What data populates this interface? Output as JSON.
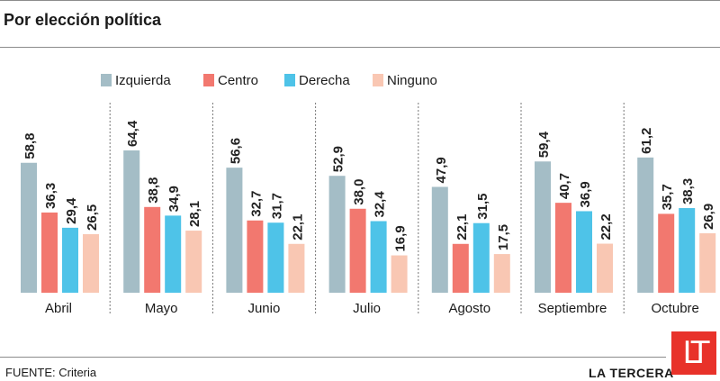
{
  "title": "Por elección política",
  "colors": {
    "izquierda": "#a4bdc6",
    "centro": "#f2786f",
    "derecha": "#4ec3e8",
    "ninguno": "#f9c7b3",
    "brand": "#e8322a"
  },
  "source": "FUENTE: Criteria",
  "brand": "LA TERCERA",
  "logo_text": "LT",
  "chart_data": {
    "type": "bar",
    "title": "Por elección política",
    "xlabel": "",
    "ylabel": "",
    "ylim": [
      0,
      64.4
    ],
    "categories": [
      "Abril",
      "Mayo",
      "Junio",
      "Julio",
      "Agosto",
      "Septiembre",
      "Octubre"
    ],
    "series": [
      {
        "name": "Izquierda",
        "labels": [
          "58,8",
          "64,4",
          "56,6",
          "52,9",
          "47,9",
          "59,4",
          "61,2"
        ],
        "values": [
          58.8,
          64.4,
          56.6,
          52.9,
          47.9,
          59.4,
          61.2
        ]
      },
      {
        "name": "Centro",
        "labels": [
          "36,3",
          "38,8",
          "32,7",
          "38,0",
          "22,1",
          "40,7",
          "35,7"
        ],
        "values": [
          36.3,
          38.8,
          32.7,
          38.0,
          22.1,
          40.7,
          35.7
        ]
      },
      {
        "name": "Derecha",
        "labels": [
          "29,4",
          "34,9",
          "31,7",
          "32,4",
          "31,5",
          "36,9",
          "38,3"
        ],
        "values": [
          29.4,
          34.9,
          31.7,
          32.4,
          31.5,
          36.9,
          38.3
        ]
      },
      {
        "name": "Ninguno",
        "labels": [
          "26,5",
          "28,1",
          "22,1",
          "16,9",
          "17,5",
          "22,2",
          "26,9"
        ],
        "values": [
          26.5,
          28.1,
          22.1,
          16.9,
          17.5,
          22.2,
          26.9
        ]
      }
    ],
    "legend_position": "top",
    "grid": false
  }
}
